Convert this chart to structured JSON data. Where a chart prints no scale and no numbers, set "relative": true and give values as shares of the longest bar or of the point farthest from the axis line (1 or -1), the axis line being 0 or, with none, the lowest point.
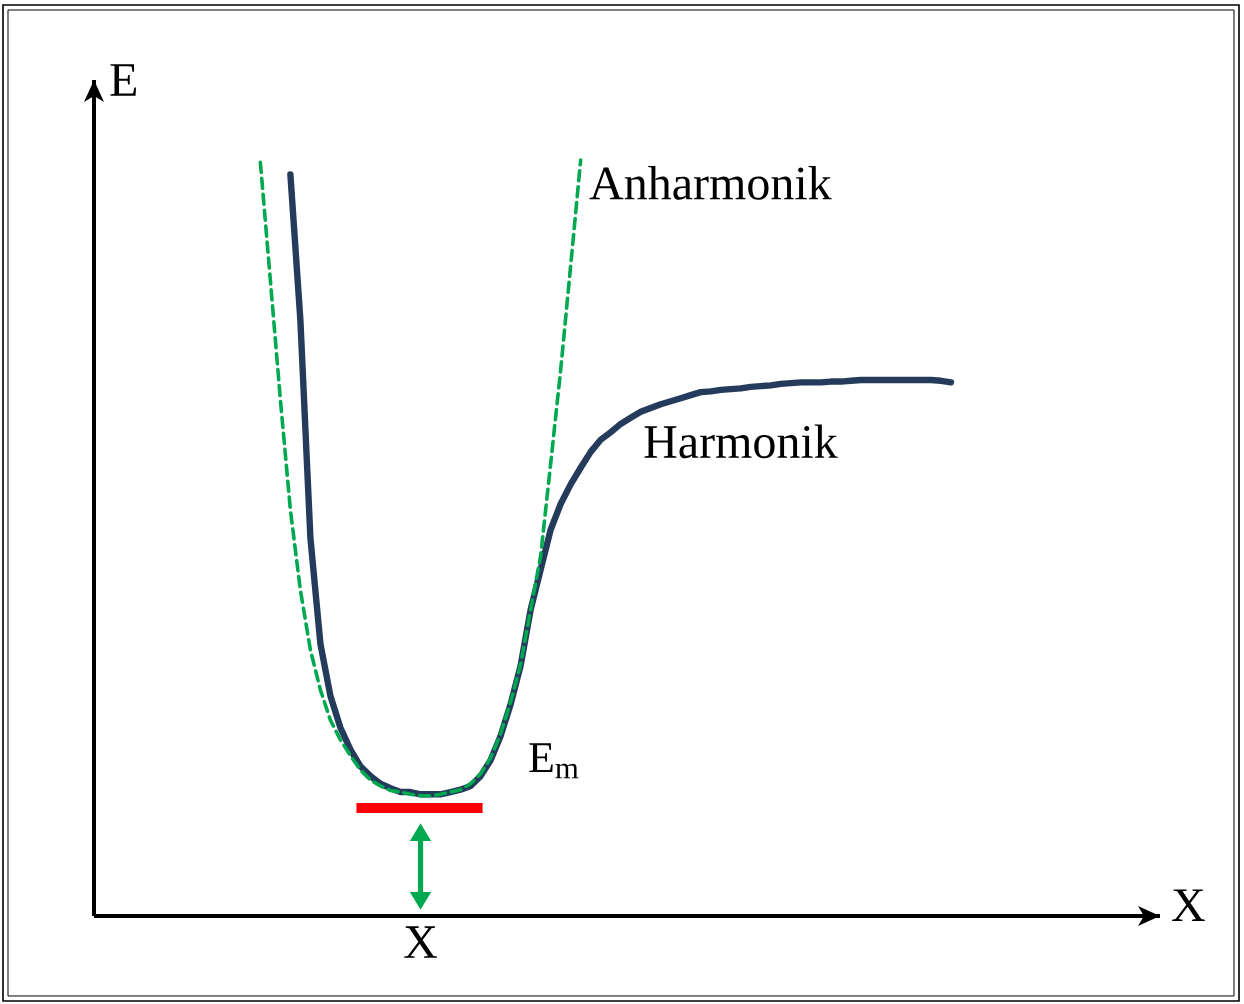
{
  "chart_data": {
    "type": "line",
    "relative": true,
    "xlabel": "X",
    "ylabel": "E",
    "categories": [
      null,
      null,
      null,
      null,
      null,
      null,
      null,
      null,
      null,
      null,
      null,
      null,
      null,
      null,
      null,
      null,
      null,
      null,
      null,
      null,
      null,
      null,
      null,
      null,
      null,
      null,
      null,
      null,
      null,
      null,
      null,
      null,
      null,
      null,
      null,
      null,
      null,
      null,
      null,
      null,
      null,
      null,
      null,
      null,
      null,
      null,
      null,
      null,
      null,
      null,
      null,
      null,
      null,
      null,
      null,
      null,
      null,
      null,
      null,
      null,
      null,
      null,
      null,
      null,
      null,
      null,
      null,
      null,
      null,
      null,
      null
    ],
    "series": [
      {
        "name": "Harmonik",
        "color": "#243b5c",
        "line_style": "solid",
        "values": [
          null,
          null,
          null,
          null,
          0.981,
          0.788,
          0.5,
          0.36,
          0.291,
          0.249,
          0.22,
          0.198,
          0.185,
          0.175,
          0.169,
          0.164,
          0.164,
          0.161,
          0.161,
          0.161,
          0.164,
          0.167,
          0.172,
          0.185,
          0.206,
          0.238,
          0.28,
          0.331,
          0.405,
          0.458,
          0.511,
          0.545,
          0.571,
          0.593,
          0.614,
          0.63,
          0.64,
          0.651,
          0.659,
          0.667,
          0.672,
          0.677,
          0.681,
          0.685,
          0.689,
          0.693,
          0.694,
          0.696,
          0.697,
          0.698,
          0.7,
          0.701,
          0.702,
          0.704,
          0.705,
          0.706,
          0.706,
          0.706,
          0.707,
          0.707,
          0.708,
          0.709,
          0.709,
          0.709,
          0.709,
          0.709,
          0.709,
          0.709,
          0.709,
          0.708,
          0.706
        ]
      },
      {
        "name": "Anharmonik",
        "color": "#00a84f",
        "line_style": "dashed",
        "values": [
          null,
          0.997,
          0.841,
          0.683,
          0.537,
          0.431,
          0.352,
          0.299,
          0.259,
          0.233,
          0.212,
          0.193,
          0.18,
          0.172,
          0.166,
          0.164,
          0.161,
          0.159,
          0.159,
          0.161,
          0.164,
          0.167,
          0.175,
          0.188,
          0.209,
          0.241,
          0.283,
          0.333,
          0.405,
          0.476,
          0.598,
          0.722,
          0.86,
          1.0,
          null,
          null,
          null,
          null,
          null,
          null,
          null,
          null,
          null,
          null,
          null,
          null,
          null,
          null,
          null,
          null,
          null,
          null,
          null,
          null,
          null,
          null,
          null,
          null,
          null,
          null,
          null,
          null,
          null,
          null,
          null,
          null,
          null,
          null,
          null,
          null,
          null
        ]
      }
    ],
    "ref_lines": [
      {
        "axis": "y",
        "value": 0.143,
        "color": "#ff0000",
        "label": "E$_{m}$"
      }
    ],
    "annotations": [
      "X"
    ]
  }
}
